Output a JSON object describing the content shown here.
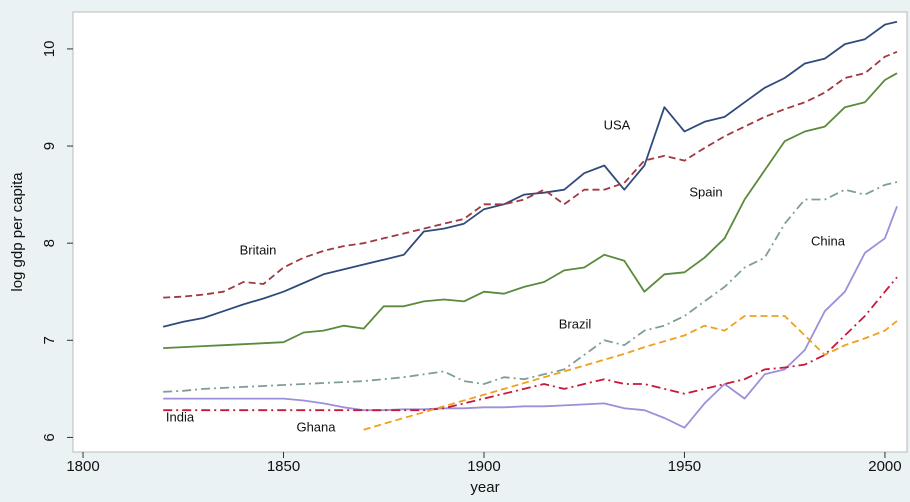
{
  "chart_data": {
    "type": "line",
    "x_label": "year",
    "y_label": "log gdp per capita",
    "xlim": [
      1797.5,
      2005.5
    ],
    "ylim": [
      5.85,
      10.38
    ],
    "xticks": [
      1800,
      1850,
      1900,
      1950,
      2000
    ],
    "yticks": [
      6,
      7,
      8,
      9,
      10
    ],
    "x": [
      1820,
      1825,
      1830,
      1835,
      1840,
      1845,
      1850,
      1855,
      1860,
      1865,
      1870,
      1875,
      1880,
      1885,
      1890,
      1895,
      1900,
      1905,
      1910,
      1915,
      1920,
      1925,
      1930,
      1935,
      1940,
      1945,
      1950,
      1955,
      1960,
      1965,
      1970,
      1975,
      1980,
      1985,
      1990,
      1995,
      2000,
      2003
    ],
    "series": [
      {
        "name": "USA",
        "color": "#2f4b7c",
        "dash": "solid",
        "values": [
          7.14,
          7.19,
          7.23,
          7.3,
          7.37,
          7.43,
          7.5,
          7.59,
          7.68,
          7.73,
          7.78,
          7.83,
          7.88,
          8.12,
          8.15,
          8.2,
          8.35,
          8.4,
          8.5,
          8.52,
          8.55,
          8.72,
          8.8,
          8.55,
          8.8,
          9.4,
          9.15,
          9.25,
          9.3,
          9.45,
          9.6,
          9.7,
          9.85,
          9.9,
          10.05,
          10.1,
          10.25,
          10.28
        ]
      },
      {
        "name": "Britain",
        "color": "#a0393f",
        "dash": "dashed",
        "values": [
          7.44,
          7.45,
          7.47,
          7.5,
          7.6,
          7.58,
          7.75,
          7.85,
          7.92,
          7.97,
          8.0,
          8.05,
          8.1,
          8.15,
          8.2,
          8.25,
          8.4,
          8.4,
          8.45,
          8.55,
          8.4,
          8.55,
          8.55,
          8.62,
          8.85,
          8.9,
          8.85,
          8.98,
          9.1,
          9.2,
          9.3,
          9.38,
          9.45,
          9.55,
          9.7,
          9.75,
          9.92,
          9.97
        ]
      },
      {
        "name": "Spain",
        "color": "#5a8a3c",
        "dash": "solid",
        "values": [
          6.92,
          6.93,
          6.94,
          6.95,
          6.96,
          6.97,
          6.98,
          7.08,
          7.1,
          7.15,
          7.12,
          7.35,
          7.35,
          7.4,
          7.42,
          7.4,
          7.5,
          7.48,
          7.55,
          7.6,
          7.72,
          7.75,
          7.88,
          7.82,
          7.5,
          7.68,
          7.7,
          7.85,
          8.05,
          8.45,
          8.75,
          9.05,
          9.15,
          9.2,
          9.4,
          9.45,
          9.68,
          9.75
        ]
      },
      {
        "name": "Brazil",
        "color": "#7f9f94",
        "dash": "dashdot",
        "values": [
          6.47,
          6.48,
          6.5,
          6.51,
          6.52,
          6.53,
          6.54,
          6.55,
          6.56,
          6.57,
          6.58,
          6.6,
          6.62,
          6.65,
          6.68,
          6.58,
          6.55,
          6.62,
          6.6,
          6.65,
          6.7,
          6.85,
          7.0,
          6.95,
          7.1,
          7.15,
          7.25,
          7.4,
          7.55,
          7.75,
          7.85,
          8.2,
          8.45,
          8.45,
          8.55,
          8.5,
          8.6,
          8.63
        ]
      },
      {
        "name": "China",
        "color": "#9d8fd8",
        "dash": "solid",
        "values": [
          6.4,
          6.4,
          6.4,
          6.4,
          6.4,
          6.4,
          6.4,
          6.38,
          6.35,
          6.31,
          6.28,
          6.28,
          6.29,
          6.29,
          6.3,
          6.3,
          6.31,
          6.31,
          6.32,
          6.32,
          6.33,
          6.34,
          6.35,
          6.3,
          6.28,
          6.2,
          6.1,
          6.35,
          6.55,
          6.4,
          6.65,
          6.7,
          6.9,
          7.3,
          7.5,
          7.9,
          8.05,
          8.38
        ]
      },
      {
        "name": "India",
        "color": "#c8183a",
        "dash": "dashdot",
        "values": [
          6.28,
          6.28,
          6.28,
          6.28,
          6.28,
          6.28,
          6.28,
          6.28,
          6.28,
          6.28,
          6.28,
          6.28,
          6.28,
          6.28,
          6.3,
          6.35,
          6.4,
          6.45,
          6.5,
          6.55,
          6.5,
          6.55,
          6.6,
          6.55,
          6.55,
          6.5,
          6.45,
          6.5,
          6.55,
          6.6,
          6.7,
          6.72,
          6.75,
          6.85,
          7.05,
          7.25,
          7.5,
          7.65
        ]
      },
      {
        "name": "Ghana",
        "color": "#f0a020",
        "dash": "dashed",
        "values": [
          null,
          null,
          null,
          null,
          null,
          null,
          null,
          null,
          null,
          null,
          6.08,
          6.14,
          6.2,
          6.26,
          6.32,
          6.38,
          6.44,
          6.5,
          6.56,
          6.62,
          6.68,
          6.74,
          6.8,
          6.86,
          6.93,
          6.99,
          7.05,
          7.15,
          7.1,
          7.25,
          7.25,
          7.25,
          7.05,
          6.85,
          6.95,
          7.02,
          7.1,
          7.2
        ]
      }
    ]
  }
}
